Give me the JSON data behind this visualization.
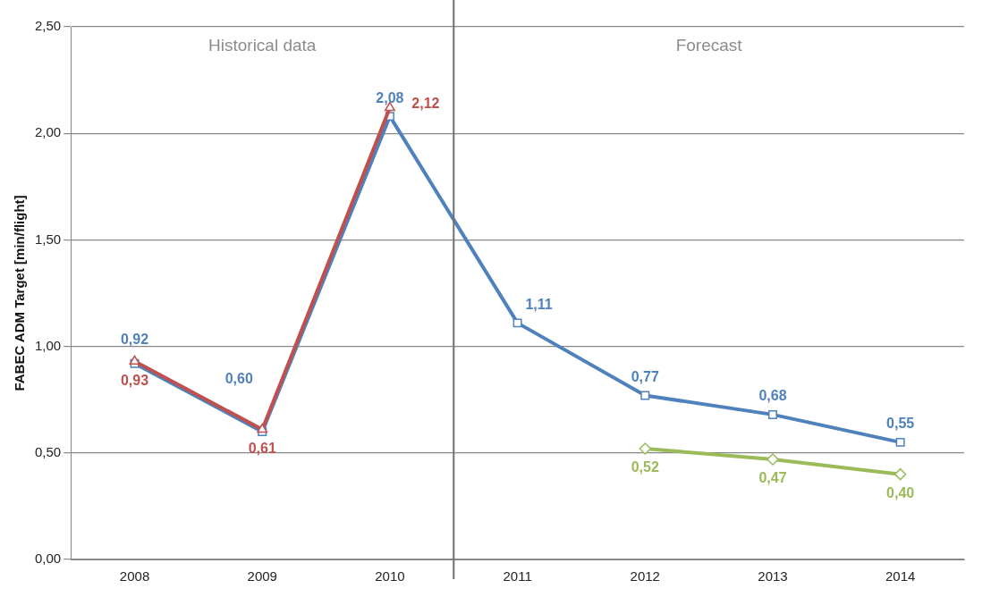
{
  "chart_data": {
    "type": "line",
    "ylabel": "FABEC ADM Target [min/flight]",
    "annotations": [
      "Historical data",
      "Forecast"
    ],
    "xlim": [
      2007.5,
      2014.5
    ],
    "xticks": [
      2008,
      2009,
      2010,
      2011,
      2012,
      2013,
      2014
    ],
    "ylim": [
      0,
      2.5
    ],
    "yticks": [
      {
        "value": 0,
        "label": "0,00"
      },
      {
        "value": 0.5,
        "label": "0,50"
      },
      {
        "value": 1,
        "label": "1,00"
      },
      {
        "value": 1.5,
        "label": "1,50"
      },
      {
        "value": 2,
        "label": "2,00"
      },
      {
        "value": 2.5,
        "label": "2,50"
      }
    ],
    "grid": "y",
    "line_style": "solid",
    "ref_lines": [
      {
        "axis": "x",
        "value": 2010.5,
        "color": "#707070"
      }
    ],
    "series": [
      {
        "color": "#c0504d",
        "marker": "triangle",
        "x": [
          2008,
          2009,
          2010
        ],
        "values": [
          0.93,
          0.61,
          2.12
        ],
        "value_labels": [
          "0,93",
          "0,61",
          "2,12"
        ]
      },
      {
        "color": "#4f81bd",
        "marker": "square",
        "x": [
          2008,
          2009,
          2010,
          2011,
          2012,
          2013,
          2014
        ],
        "values": [
          0.92,
          0.6,
          2.08,
          1.11,
          0.77,
          0.68,
          0.55
        ],
        "value_labels": [
          "0,92",
          "0,60",
          "2,08",
          "1,11",
          "0,77",
          "0,68",
          "0,55"
        ]
      },
      {
        "color": "#9bbb59",
        "marker": "diamond",
        "x": [
          2012,
          2013,
          2014
        ],
        "values": [
          0.52,
          0.47,
          0.4
        ],
        "value_labels": [
          "0,52",
          "0,47",
          "0,40"
        ]
      }
    ]
  }
}
